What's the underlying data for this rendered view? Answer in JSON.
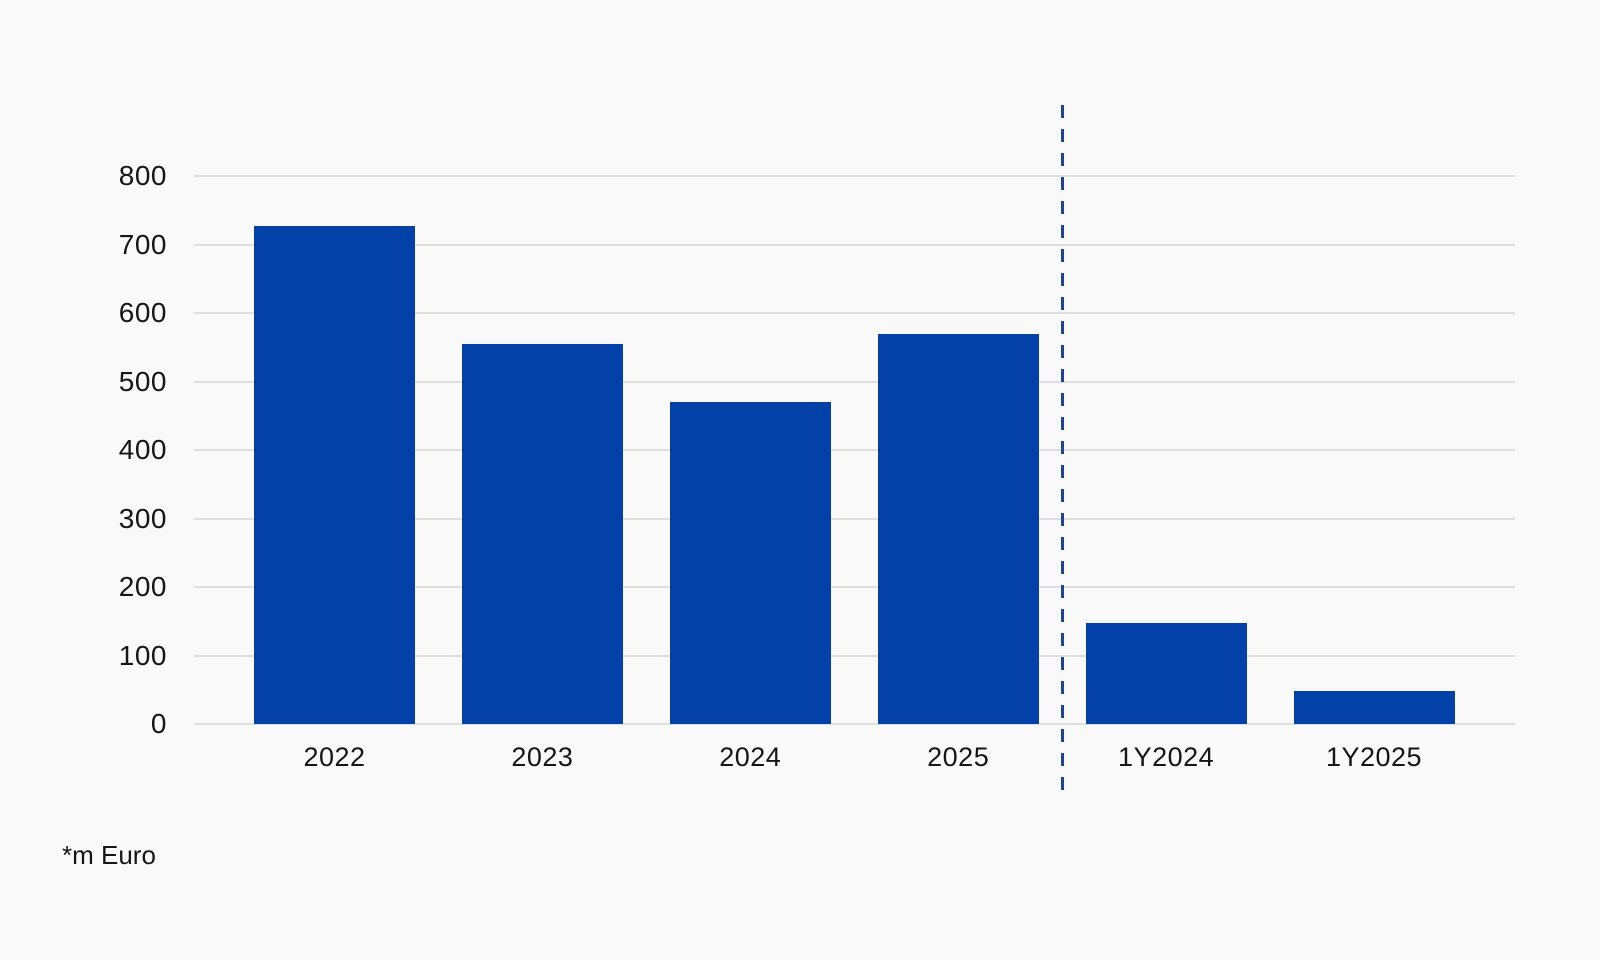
{
  "chart_data": {
    "type": "bar",
    "categories": [
      "2022",
      "2023",
      "2024",
      "2025",
      "1Y2024",
      "1Y2025"
    ],
    "values": [
      727,
      555,
      470,
      570,
      148,
      48
    ],
    "title": "",
    "xlabel": "",
    "ylabel": "",
    "ylim": [
      0,
      800
    ],
    "y_ticks": [
      0,
      100,
      200,
      300,
      400,
      500,
      600,
      700,
      800
    ],
    "grid": true,
    "legend": false,
    "unit_note": "*m Euro",
    "separator_after_index": 3,
    "colors": {
      "bar": "#0341a8",
      "separator": "#1f4496",
      "gridline": "#dedede",
      "text": "#161616",
      "background": "#f9f9f9"
    }
  },
  "footnote": "*m Euro"
}
